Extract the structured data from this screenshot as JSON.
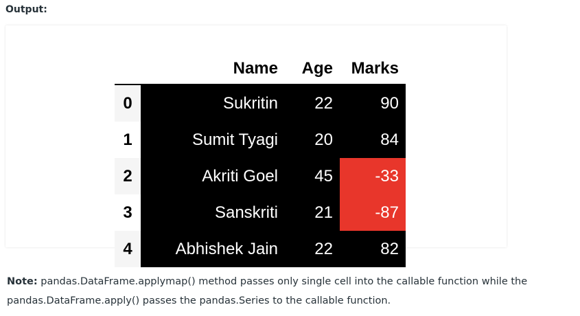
{
  "output_label": "Output:",
  "table": {
    "columns": [
      "Name",
      "Age",
      "Marks"
    ],
    "rows": [
      {
        "index": "0",
        "name": "Sukritin",
        "age": "22",
        "marks": "90",
        "negative": false
      },
      {
        "index": "1",
        "name": "Sumit Tyagi",
        "age": "20",
        "marks": "84",
        "negative": false
      },
      {
        "index": "2",
        "name": "Akriti Goel",
        "age": "45",
        "marks": "-33",
        "negative": true
      },
      {
        "index": "3",
        "name": "Sanskriti",
        "age": "21",
        "marks": "-87",
        "negative": true
      },
      {
        "index": "4",
        "name": "Abhishek Jain",
        "age": "22",
        "marks": "82",
        "negative": false
      }
    ],
    "colors": {
      "cell_bg": "#000000",
      "cell_text": "#ffffff",
      "negative_bg": "#e8362b"
    }
  },
  "note": {
    "label": "Note:",
    "part1": " pandas.DataFrame.applymap() method passes only single cell into the callable function while the pandas.DataFrame.apply() passes the pandas.Series to the callable function."
  }
}
